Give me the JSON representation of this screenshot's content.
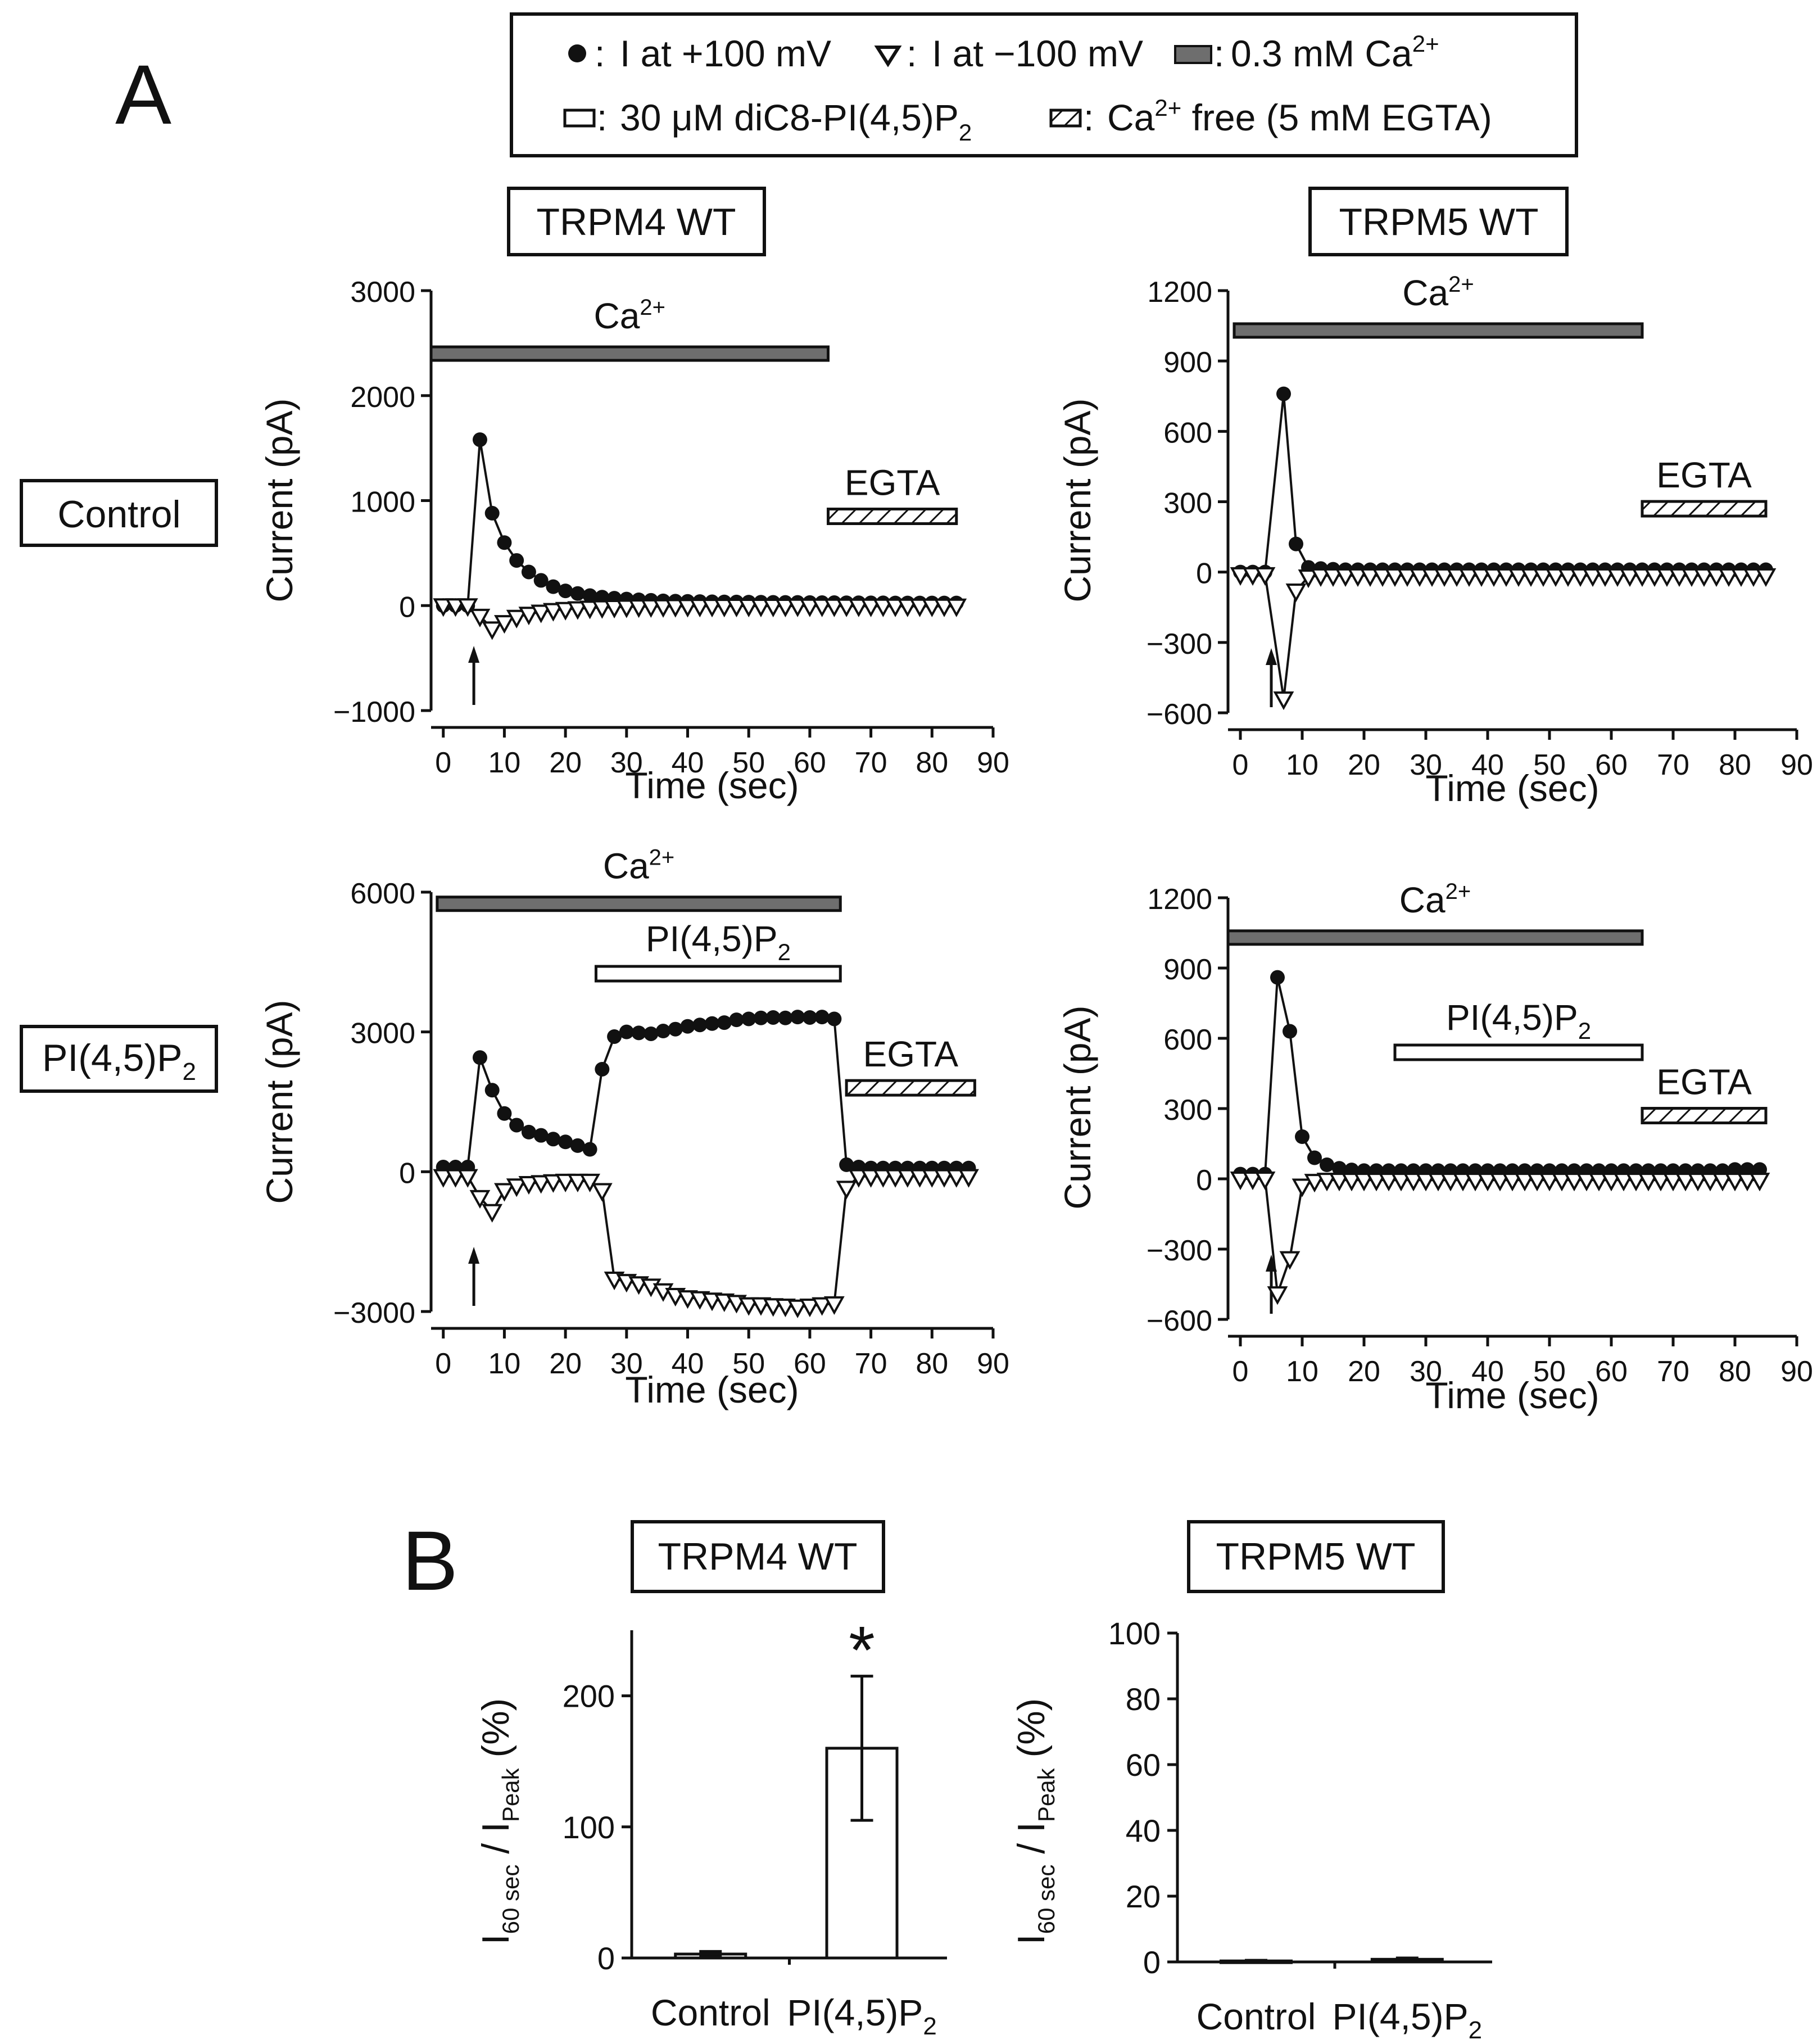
{
  "panel_labels": {
    "a": "A",
    "b": "B"
  },
  "legend": {
    "plus100": "I at +100 mV",
    "minus100": "I at −100 mV",
    "ca": "0.3 mM Ca",
    "ca_sup": "2+",
    "pip2_a": "30 μM diC8-PI(4,5)P",
    "pip2_sub": "2",
    "free_a": "Ca",
    "free_sup": "2+",
    "free_b": " free (5 mM EGTA)",
    "sep": ":"
  },
  "column_titles": {
    "m4": "TRPM4 WT",
    "m5": "TRPM5 WT"
  },
  "row_labels": {
    "control": "Control",
    "pip2": "PI(4,5)P",
    "pip2_sub": "2"
  },
  "bar_labels": {
    "ca": "Ca",
    "ca_sup": "2+",
    "egta": "EGTA",
    "pip2": "PI(4,5)P",
    "pip2_sub": "2"
  },
  "colors": {
    "ca_bar": "#6e6e6e",
    "marker": "#111111",
    "background": "#ffffff"
  },
  "chart_data": [
    {
      "id": "m4-control",
      "type": "line",
      "column": "TRPM4 WT",
      "row": "Control",
      "xlabel": "Time (sec)",
      "ylabel": "Current (pA)",
      "xlim": [
        -2,
        90
      ],
      "ylim": [
        -1000,
        3000
      ],
      "xticks": [
        0,
        10,
        20,
        30,
        40,
        50,
        60,
        70,
        80,
        90
      ],
      "yticks": [
        -1000,
        0,
        1000,
        2000,
        3000
      ],
      "ytick_labels": [
        "−1000",
        "0",
        "1000",
        "2000",
        "3000"
      ],
      "bars": [
        {
          "kind": "ca",
          "t0": -2,
          "t1": 63,
          "level": 2400
        },
        {
          "kind": "egta",
          "t0": 63,
          "t1": 84,
          "level": 850
        }
      ],
      "arrow_t": 5,
      "series": [
        {
          "name": "I at +100 mV",
          "marker": "circle",
          "t": [
            0,
            2,
            4,
            6,
            8,
            10,
            12,
            14,
            16,
            18,
            20,
            22,
            24,
            26,
            28,
            30,
            32,
            34,
            36,
            38,
            40,
            42,
            44,
            46,
            48,
            50,
            52,
            54,
            56,
            58,
            60,
            62,
            64,
            66,
            68,
            70,
            72,
            74,
            76,
            78,
            80,
            82,
            84
          ],
          "values": [
            0,
            0,
            0,
            1580,
            880,
            600,
            430,
            320,
            240,
            180,
            140,
            115,
            95,
            80,
            70,
            62,
            55,
            50,
            45,
            42,
            40,
            38,
            36,
            35,
            34,
            33,
            32,
            31,
            30,
            30,
            29,
            28,
            28,
            27,
            27,
            26,
            26,
            25,
            25,
            25,
            25,
            25,
            25
          ]
        },
        {
          "name": "I at −100 mV",
          "marker": "triangle-down",
          "t": [
            0,
            2,
            4,
            6,
            8,
            10,
            12,
            14,
            16,
            18,
            20,
            22,
            24,
            26,
            28,
            30,
            32,
            34,
            36,
            38,
            40,
            42,
            44,
            46,
            48,
            50,
            52,
            54,
            56,
            58,
            60,
            62,
            64,
            66,
            68,
            70,
            72,
            74,
            76,
            78,
            80,
            82,
            84
          ],
          "values": [
            0,
            0,
            0,
            -100,
            -220,
            -160,
            -110,
            -80,
            -60,
            -45,
            -35,
            -28,
            -22,
            -18,
            -15,
            -12,
            -10,
            -9,
            -8,
            -7,
            -6,
            -5,
            -5,
            -5,
            -4,
            -4,
            -4,
            -4,
            -4,
            -3,
            -3,
            -3,
            -3,
            -3,
            -3,
            -3,
            -3,
            -3,
            -3,
            -3,
            -3,
            -3,
            -3
          ]
        }
      ]
    },
    {
      "id": "m5-control",
      "type": "line",
      "column": "TRPM5 WT",
      "row": "Control",
      "xlabel": "Time (sec)",
      "ylabel": "Current (pA)",
      "xlim": [
        -2,
        90
      ],
      "ylim": [
        -600,
        1200
      ],
      "xticks": [
        0,
        10,
        20,
        30,
        40,
        50,
        60,
        70,
        80,
        90
      ],
      "yticks": [
        -600,
        -300,
        0,
        300,
        600,
        900,
        1200
      ],
      "ytick_labels": [
        "−600",
        "−300",
        "0",
        "300",
        "600",
        "900",
        "1200"
      ],
      "bars": [
        {
          "kind": "ca",
          "t0": -1,
          "t1": 65,
          "level": 1030
        },
        {
          "kind": "egta",
          "t0": 65,
          "t1": 85,
          "level": 270
        }
      ],
      "arrow_t": 5,
      "series": [
        {
          "name": "I at +100 mV",
          "marker": "circle",
          "t": [
            0,
            2,
            4,
            7,
            9,
            11,
            13,
            15,
            17,
            19,
            21,
            23,
            25,
            27,
            29,
            31,
            33,
            35,
            37,
            39,
            41,
            43,
            45,
            47,
            49,
            51,
            53,
            55,
            57,
            59,
            61,
            63,
            65,
            67,
            69,
            71,
            73,
            75,
            77,
            79,
            81,
            83,
            85
          ],
          "values": [
            0,
            0,
            0,
            760,
            120,
            20,
            15,
            12,
            10,
            10,
            10,
            10,
            10,
            10,
            10,
            10,
            10,
            10,
            10,
            10,
            10,
            10,
            10,
            10,
            10,
            10,
            10,
            10,
            10,
            10,
            10,
            10,
            10,
            10,
            10,
            10,
            10,
            10,
            10,
            10,
            10,
            10,
            10
          ]
        },
        {
          "name": "I at −100 mV",
          "marker": "triangle-down",
          "t": [
            0,
            2,
            4,
            7,
            9,
            11,
            13,
            15,
            17,
            19,
            21,
            23,
            25,
            27,
            29,
            31,
            33,
            35,
            37,
            39,
            41,
            43,
            45,
            47,
            49,
            51,
            53,
            55,
            57,
            59,
            61,
            63,
            65,
            67,
            69,
            71,
            73,
            75,
            77,
            79,
            81,
            83,
            85
          ],
          "values": [
            -10,
            -10,
            -10,
            -540,
            -80,
            -20,
            -15,
            -15,
            -15,
            -15,
            -15,
            -15,
            -15,
            -15,
            -15,
            -15,
            -15,
            -15,
            -15,
            -15,
            -15,
            -15,
            -15,
            -15,
            -15,
            -15,
            -15,
            -15,
            -15,
            -15,
            -15,
            -15,
            -15,
            -15,
            -15,
            -15,
            -15,
            -15,
            -15,
            -15,
            -15,
            -15,
            -15
          ]
        }
      ]
    },
    {
      "id": "m4-pip2",
      "type": "line",
      "column": "TRPM4 WT",
      "row": "PI(4,5)P2",
      "xlabel": "Time (sec)",
      "ylabel": "Current (pA)",
      "xlim": [
        -2,
        90
      ],
      "ylim": [
        -3000,
        6000
      ],
      "xticks": [
        0,
        10,
        20,
        30,
        40,
        50,
        60,
        70,
        80,
        90
      ],
      "yticks": [
        -3000,
        0,
        3000,
        6000
      ],
      "ytick_labels": [
        "−3000",
        "0",
        "3000",
        "6000"
      ],
      "bars": [
        {
          "kind": "ca",
          "t0": -1,
          "t1": 65,
          "level": 5750
        },
        {
          "kind": "pip2",
          "t0": 25,
          "t1": 65,
          "level": 4250
        },
        {
          "kind": "egta",
          "t0": 66,
          "t1": 87,
          "level": 1800
        }
      ],
      "arrow_t": 5,
      "series": [
        {
          "name": "I at +100 mV",
          "marker": "circle",
          "t": [
            0,
            2,
            4,
            6,
            8,
            10,
            12,
            14,
            16,
            18,
            20,
            22,
            24,
            26,
            28,
            30,
            32,
            34,
            36,
            38,
            40,
            42,
            44,
            46,
            48,
            50,
            52,
            54,
            56,
            58,
            60,
            62,
            64,
            66,
            68,
            70,
            72,
            74,
            76,
            78,
            80,
            82,
            84,
            86
          ],
          "values": [
            100,
            100,
            100,
            2450,
            1750,
            1250,
            1000,
            850,
            780,
            700,
            640,
            560,
            480,
            2200,
            2900,
            3000,
            2980,
            2960,
            3020,
            3060,
            3120,
            3150,
            3180,
            3200,
            3260,
            3280,
            3300,
            3310,
            3300,
            3320,
            3310,
            3320,
            3280,
            150,
            100,
            80,
            80,
            80,
            80,
            80,
            80,
            80,
            80,
            80
          ]
        },
        {
          "name": "I at −100 mV",
          "marker": "triangle-down",
          "t": [
            0,
            2,
            4,
            6,
            8,
            10,
            12,
            14,
            16,
            18,
            20,
            22,
            24,
            26,
            28,
            30,
            32,
            34,
            36,
            38,
            40,
            42,
            44,
            46,
            48,
            50,
            52,
            54,
            56,
            58,
            60,
            62,
            64,
            66,
            68,
            70,
            72,
            74,
            76,
            78,
            80,
            82,
            84,
            86
          ],
          "values": [
            -100,
            -100,
            -100,
            -550,
            -850,
            -400,
            -300,
            -250,
            -230,
            -210,
            -200,
            -200,
            -200,
            -400,
            -2300,
            -2350,
            -2400,
            -2450,
            -2550,
            -2650,
            -2700,
            -2720,
            -2750,
            -2770,
            -2800,
            -2850,
            -2850,
            -2870,
            -2880,
            -2900,
            -2880,
            -2850,
            -2830,
            -350,
            -100,
            -100,
            -100,
            -100,
            -100,
            -100,
            -100,
            -100,
            -100,
            -100
          ]
        }
      ]
    },
    {
      "id": "m5-pip2",
      "type": "line",
      "column": "TRPM5 WT",
      "row": "PI(4,5)P2",
      "xlabel": "Time (sec)",
      "ylabel": "Current (pA)",
      "xlim": [
        -2,
        90
      ],
      "ylim": [
        -600,
        1200
      ],
      "xticks": [
        0,
        10,
        20,
        30,
        40,
        50,
        60,
        70,
        80,
        90
      ],
      "yticks": [
        -600,
        -300,
        0,
        300,
        600,
        900,
        1200
      ],
      "ytick_labels": [
        "−600",
        "−300",
        "0",
        "300",
        "600",
        "900",
        "1200"
      ],
      "bars": [
        {
          "kind": "ca",
          "t0": -2,
          "t1": 65,
          "level": 1030
        },
        {
          "kind": "pip2",
          "t0": 25,
          "t1": 65,
          "level": 540
        },
        {
          "kind": "egta",
          "t0": 65,
          "t1": 85,
          "level": 270
        }
      ],
      "arrow_t": 5,
      "series": [
        {
          "name": "I at +100 mV",
          "marker": "circle",
          "t": [
            0,
            2,
            4,
            6,
            8,
            10,
            12,
            14,
            16,
            18,
            20,
            22,
            24,
            26,
            28,
            30,
            32,
            34,
            36,
            38,
            40,
            42,
            44,
            46,
            48,
            50,
            52,
            54,
            56,
            58,
            60,
            62,
            64,
            66,
            68,
            70,
            72,
            74,
            76,
            78,
            80,
            82,
            84
          ],
          "values": [
            20,
            20,
            20,
            860,
            630,
            180,
            90,
            60,
            45,
            38,
            35,
            35,
            35,
            35,
            35,
            35,
            35,
            35,
            35,
            35,
            35,
            35,
            35,
            35,
            35,
            35,
            35,
            35,
            35,
            35,
            35,
            35,
            35,
            35,
            35,
            35,
            35,
            35,
            35,
            35,
            40,
            40,
            40
          ]
        },
        {
          "name": "I at −100 mV",
          "marker": "triangle-down",
          "t": [
            0,
            2,
            4,
            6,
            8,
            10,
            12,
            14,
            16,
            18,
            20,
            22,
            24,
            26,
            28,
            30,
            32,
            34,
            36,
            38,
            40,
            42,
            44,
            46,
            48,
            50,
            52,
            54,
            56,
            58,
            60,
            62,
            64,
            66,
            68,
            70,
            72,
            74,
            76,
            78,
            80,
            82,
            84
          ],
          "values": [
            0,
            0,
            0,
            -490,
            -340,
            -30,
            -10,
            -5,
            -5,
            -5,
            -5,
            -5,
            -5,
            -5,
            -5,
            -5,
            -5,
            -5,
            -5,
            -5,
            -5,
            -5,
            -5,
            -5,
            -5,
            -5,
            -5,
            -5,
            -5,
            -5,
            -5,
            -5,
            -5,
            -5,
            -5,
            -5,
            -5,
            -5,
            -5,
            -5,
            -5,
            -5,
            -5
          ]
        }
      ]
    },
    {
      "id": "b-m4",
      "type": "bar",
      "column": "TRPM4 WT",
      "categories": [
        "Control",
        "PI(4,5)P2"
      ],
      "values": [
        3,
        160
      ],
      "errors": [
        2,
        55
      ],
      "significance": [
        "",
        "*"
      ],
      "ylim": [
        0,
        250
      ],
      "yticks": [
        0,
        100,
        200
      ],
      "ylabel": "I60 sec / IPeak (%)"
    },
    {
      "id": "b-m5",
      "type": "bar",
      "column": "TRPM5 WT",
      "categories": [
        "Control",
        "PI(4,5)P2"
      ],
      "values": [
        0.3,
        0.8
      ],
      "errors": [
        0.2,
        0.4
      ],
      "significance": [
        "",
        ""
      ],
      "ylim": [
        0,
        100
      ],
      "yticks": [
        0,
        20,
        40,
        60,
        80,
        100
      ],
      "ylabel": "I60 sec / IPeak (%)"
    }
  ],
  "bar_axis": {
    "ylabel_main": "I",
    "ylabel_sub1": "60 sec",
    "ylabel_mid": " / I",
    "ylabel_sub2": "Peak",
    "ylabel_unit": " (%)",
    "cat_control": "Control",
    "cat_pip2": "PI(4,5)P",
    "cat_pip2_sub": "2"
  }
}
